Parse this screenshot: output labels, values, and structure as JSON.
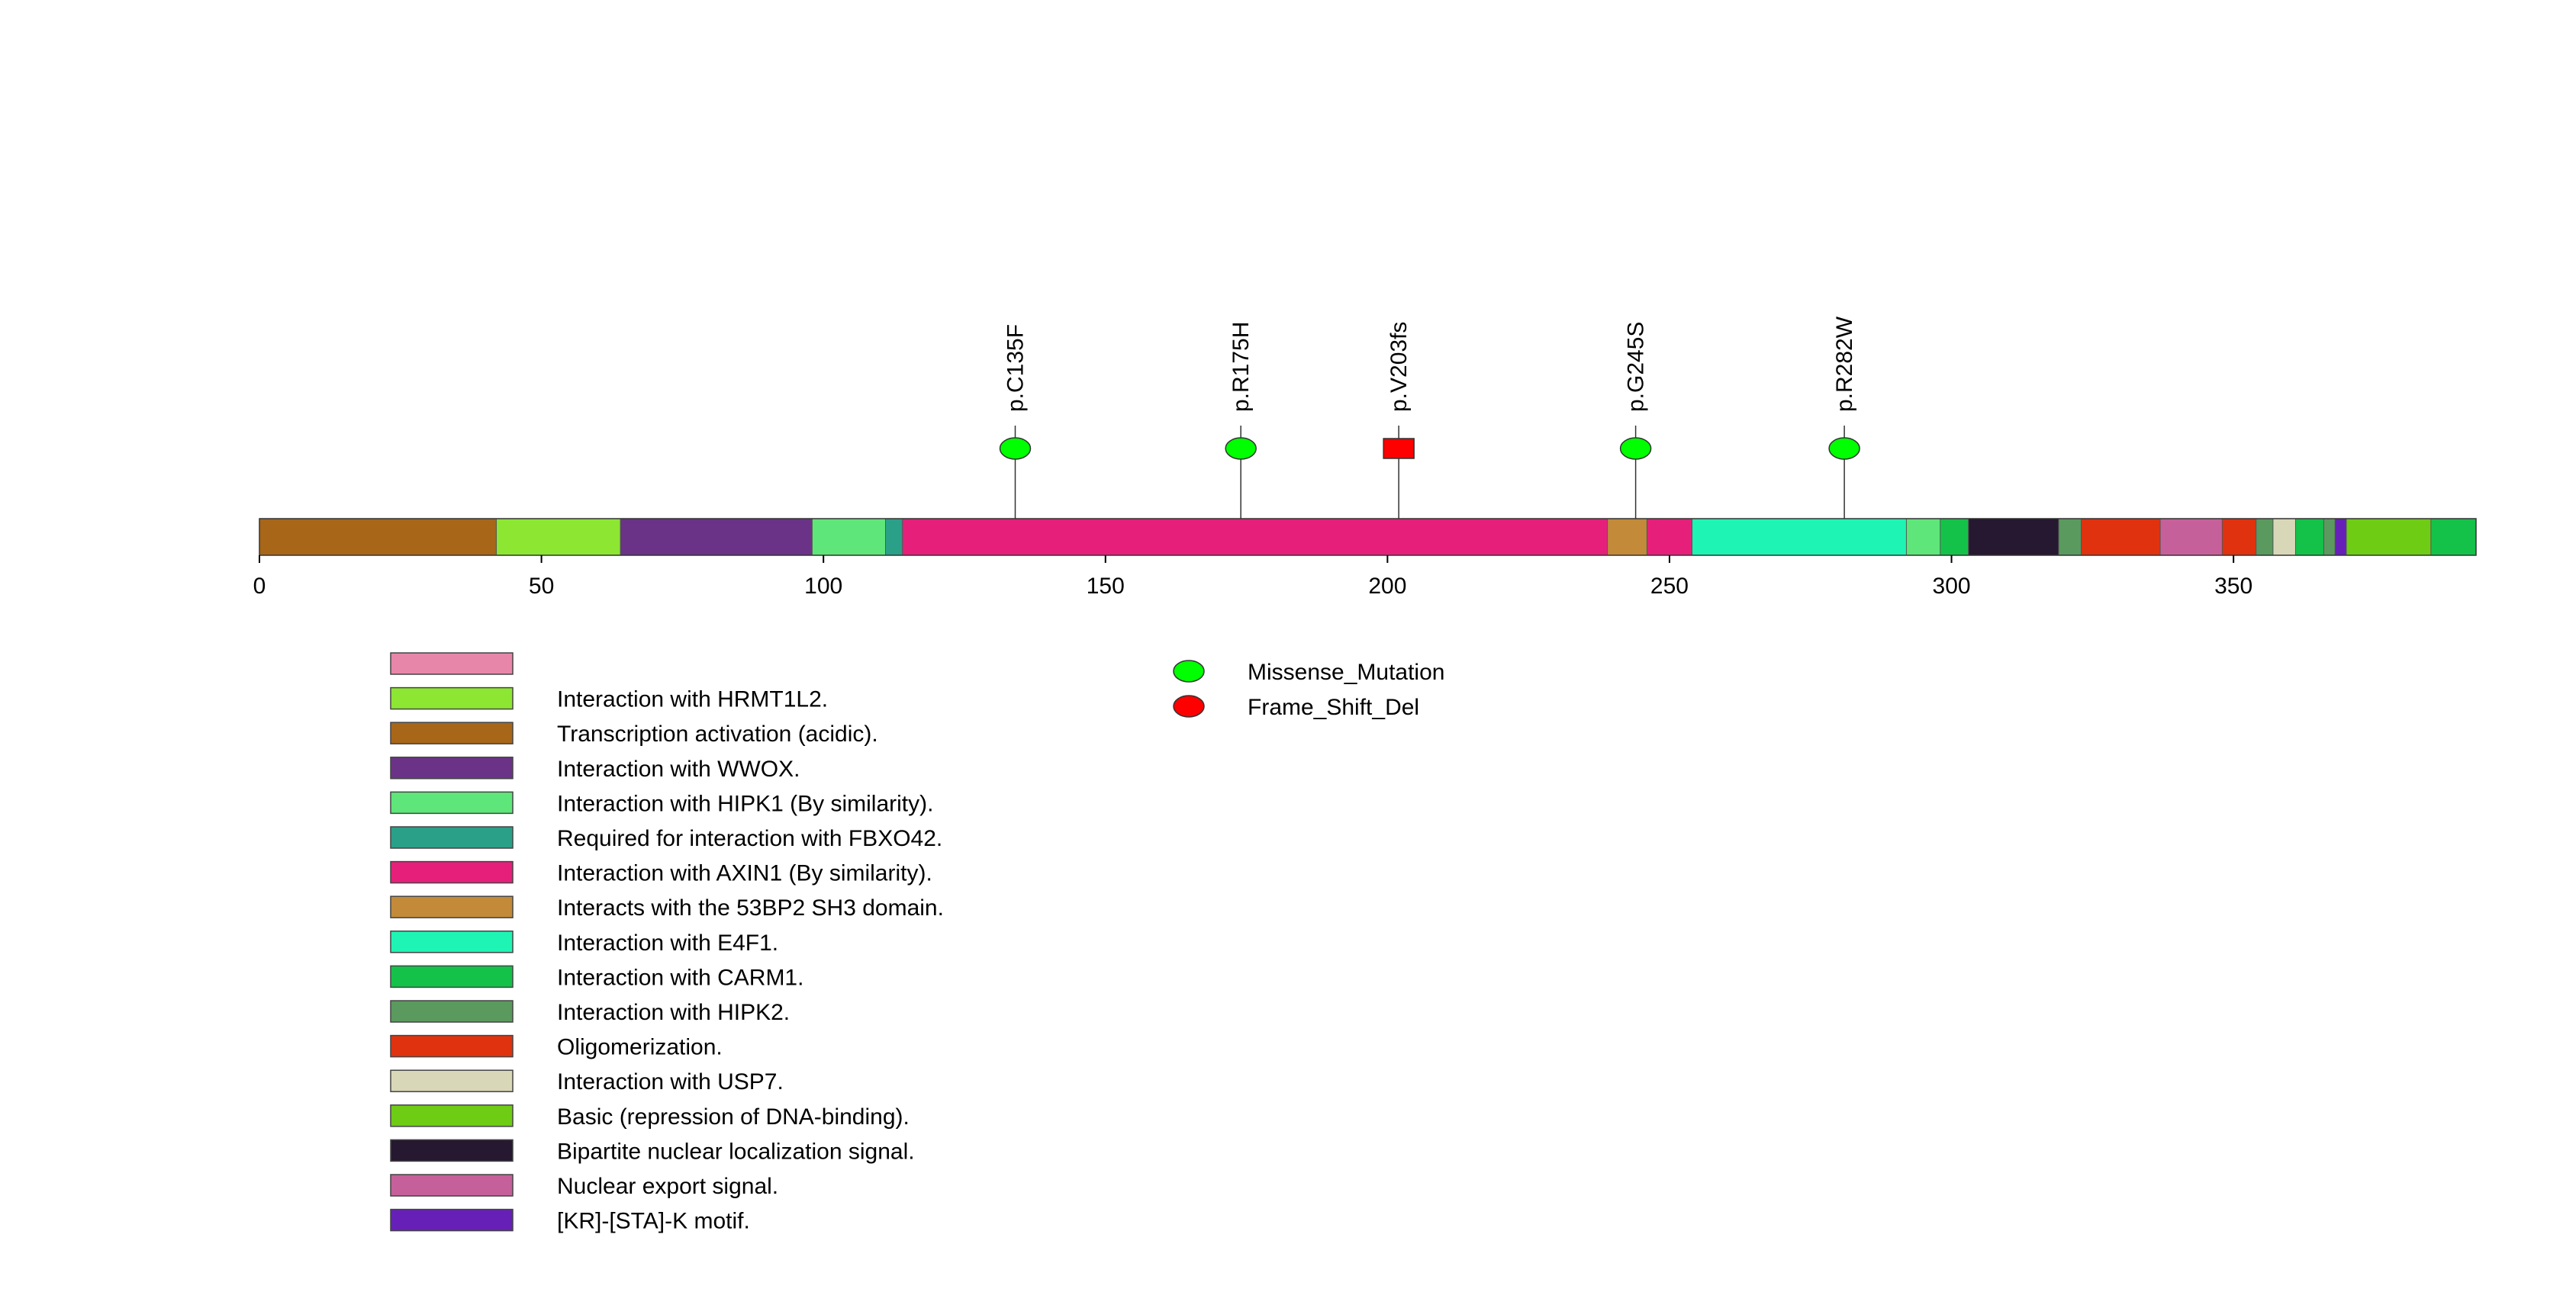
{
  "chart_data": {
    "type": "lollipop",
    "title": "",
    "xlabel": "",
    "ylabel": "",
    "protein_length": 393,
    "xlim": [
      0,
      393
    ],
    "x_ticks": [
      0,
      50,
      100,
      150,
      200,
      250,
      300,
      350
    ],
    "x_tick_labels": [
      "0",
      "50",
      "100",
      "150",
      "200",
      "250",
      "300",
      "350"
    ],
    "domains": [
      {
        "name": "Transcription activation (acidic).",
        "start": 1,
        "end": 43,
        "color": "#A86619"
      },
      {
        "name": "Interaction with HRMT1L2.",
        "start": 43,
        "end": 65,
        "color": "#8CE632"
      },
      {
        "name": "Interaction with WWOX.",
        "start": 65,
        "end": 99,
        "color": "#6B3387"
      },
      {
        "name": "Interaction with HIPK1 (By similarity).",
        "start": 99,
        "end": 112,
        "color": "#5FE67A"
      },
      {
        "name": "Required for interaction with FBXO42.",
        "start": 112,
        "end": 115,
        "color": "#2AA088"
      },
      {
        "name": "Interaction with AXIN1 (By similarity).",
        "start": 115,
        "end": 240,
        "color": "#E6207A"
      },
      {
        "name": "Interacts with the 53BP2 SH3 domain.",
        "start": 240,
        "end": 247,
        "color": "#C38A3A"
      },
      {
        "name": "Interaction with AXIN1 (By similarity).",
        "start": 247,
        "end": 255,
        "color": "#E6207A"
      },
      {
        "name": "Interaction with E4F1.",
        "start": 255,
        "end": 293,
        "color": "#1EF5B4"
      },
      {
        "name": "Interaction with HIPK1 (By similarity).",
        "start": 293,
        "end": 299,
        "color": "#5FE67A"
      },
      {
        "name": "Interaction with CARM1.",
        "start": 299,
        "end": 304,
        "color": "#14C24A"
      },
      {
        "name": "Bipartite nuclear localization signal.",
        "start": 304,
        "end": 320,
        "color": "#261830"
      },
      {
        "name": "Interaction with HIPK2.",
        "start": 320,
        "end": 324,
        "color": "#5A9A5E"
      },
      {
        "name": "Oligomerization.",
        "start": 324,
        "end": 338,
        "color": "#E0320E"
      },
      {
        "name": "Nuclear export signal.",
        "start": 338,
        "end": 349,
        "color": "#C6609A"
      },
      {
        "name": "Oligomerization.",
        "start": 349,
        "end": 355,
        "color": "#E0320E"
      },
      {
        "name": "Interaction with HIPK2.",
        "start": 355,
        "end": 358,
        "color": "#5A9A5E"
      },
      {
        "name": "Interaction with USP7.",
        "start": 358,
        "end": 362,
        "color": "#D8D8B8"
      },
      {
        "name": "Interaction with CARM1.",
        "start": 362,
        "end": 367,
        "color": "#14C24A"
      },
      {
        "name": "Interaction with HIPK2.",
        "start": 367,
        "end": 369,
        "color": "#5A9A5E"
      },
      {
        "name": "[KR]-[STA]-K motif.",
        "start": 369,
        "end": 371,
        "color": "#6620B8"
      },
      {
        "name": "Basic (repression of DNA-binding).",
        "start": 371,
        "end": 386,
        "color": "#6ECC14"
      },
      {
        "name": "Interaction with CARM1.",
        "start": 386,
        "end": 393,
        "color": "#14C24A"
      }
    ],
    "mutations": [
      {
        "label": "p.C135F",
        "position": 134,
        "type": "Missense_Mutation"
      },
      {
        "label": "p.R175H",
        "position": 174,
        "type": "Missense_Mutation"
      },
      {
        "label": "p.V203fs",
        "position": 202,
        "type": "Frame_Shift_Del"
      },
      {
        "label": "p.G245S",
        "position": 244,
        "type": "Missense_Mutation"
      },
      {
        "label": "p.R282W",
        "position": 281,
        "type": "Missense_Mutation"
      }
    ],
    "domain_legend": [
      {
        "label": "",
        "color": "#E886AA"
      },
      {
        "label": "Interaction with HRMT1L2.",
        "color": "#8CE632"
      },
      {
        "label": "Transcription activation (acidic).",
        "color": "#A86619"
      },
      {
        "label": "Interaction with WWOX.",
        "color": "#6B3387"
      },
      {
        "label": "Interaction with HIPK1 (By similarity).",
        "color": "#5FE67A"
      },
      {
        "label": "Required for interaction with FBXO42.",
        "color": "#2AA088"
      },
      {
        "label": "Interaction with AXIN1 (By similarity).",
        "color": "#E6207A"
      },
      {
        "label": "Interacts with the 53BP2 SH3 domain.",
        "color": "#C38A3A"
      },
      {
        "label": "Interaction with E4F1.",
        "color": "#1EF5B4"
      },
      {
        "label": "Interaction with CARM1.",
        "color": "#14C24A"
      },
      {
        "label": "Interaction with HIPK2.",
        "color": "#5A9A5E"
      },
      {
        "label": "Oligomerization.",
        "color": "#E0320E"
      },
      {
        "label": "Interaction with USP7.",
        "color": "#D8D8B8"
      },
      {
        "label": "Basic (repression of DNA-binding).",
        "color": "#6ECC14"
      },
      {
        "label": "Bipartite nuclear localization signal.",
        "color": "#261830"
      },
      {
        "label": "Nuclear export signal.",
        "color": "#C6609A"
      },
      {
        "label": "[KR]-[STA]-K motif.",
        "color": "#6620B8"
      }
    ],
    "mutation_legend": [
      {
        "label": "Missense_Mutation",
        "color": "#00FF00"
      },
      {
        "label": "Frame_Shift_Del",
        "color": "#FF0000"
      }
    ],
    "mutation_colors": {
      "Missense_Mutation": "#00FF00",
      "Frame_Shift_Del": "#FF0000"
    }
  }
}
